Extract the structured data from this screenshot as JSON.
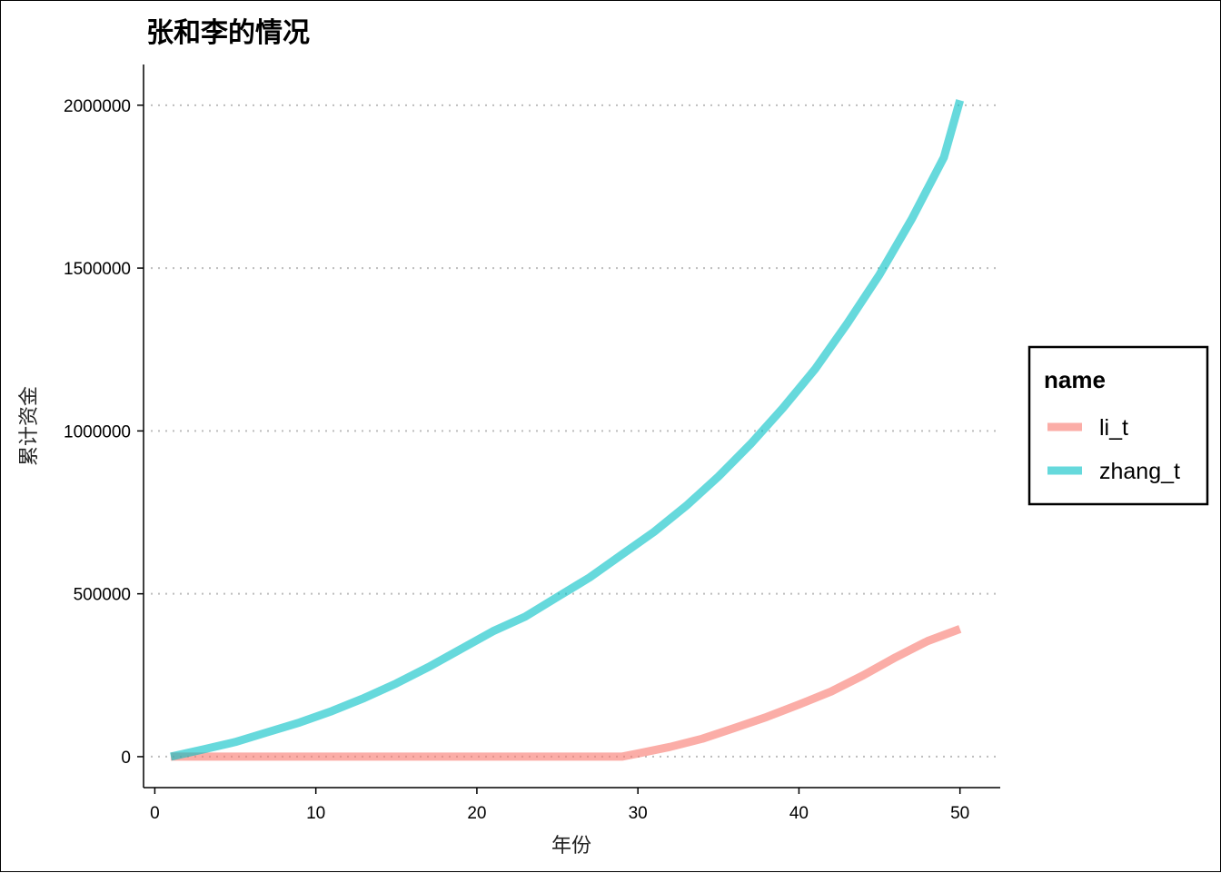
{
  "chart_data": {
    "type": "line",
    "title": "张和李的情况",
    "xlabel": "年份",
    "ylabel": "累计资金",
    "xlim": [
      -0.7,
      52.5
    ],
    "ylim": [
      -95000,
      2125000
    ],
    "x_ticks": [
      0,
      10,
      20,
      30,
      40,
      50
    ],
    "y_ticks": [
      0,
      500000,
      1000000,
      1500000,
      2000000
    ],
    "grid": "horizontal dotted",
    "legend": {
      "title": "name",
      "placement": "right"
    },
    "series": [
      {
        "name": "li_t",
        "color": "#F8766D",
        "x": [
          1,
          29,
          30,
          32,
          34,
          36,
          38,
          40,
          42,
          44,
          46,
          48,
          50
        ],
        "y": [
          0,
          0,
          10000,
          30000,
          55000,
          88000,
          122000,
          160000,
          200000,
          250000,
          305000,
          355000,
          392000
        ]
      },
      {
        "name": "zhang_t",
        "color": "#00BFC4",
        "x": [
          1,
          3,
          5,
          7,
          9,
          11,
          13,
          15,
          17,
          19,
          21,
          23,
          25,
          27,
          29,
          31,
          33,
          35,
          37,
          39,
          41,
          43,
          45,
          47,
          49,
          50
        ],
        "y": [
          0,
          22000,
          45000,
          75000,
          105000,
          140000,
          180000,
          225000,
          275000,
          330000,
          385000,
          430000,
          490000,
          550000,
          620000,
          690000,
          770000,
          860000,
          960000,
          1070000,
          1190000,
          1330000,
          1480000,
          1650000,
          1840000,
          2015000
        ]
      }
    ]
  }
}
